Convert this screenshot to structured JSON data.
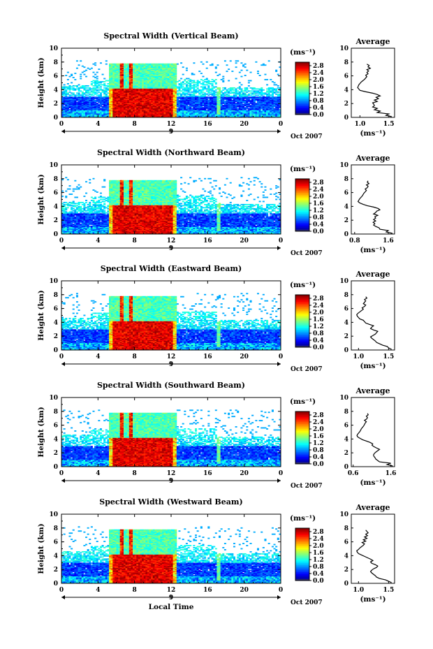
{
  "chart_data": [
    {
      "type": "heatmap",
      "title": "Spectral Width (Vertical Beam)",
      "ylabel": "Height (km)",
      "xlim": [
        0,
        24
      ],
      "ylim": [
        0,
        10
      ],
      "x_ticks": [
        "0",
        "4",
        "8",
        "12",
        "16",
        "20",
        "0"
      ],
      "y_ticks": [
        "0",
        "2",
        "4",
        "6",
        "8",
        "10"
      ],
      "date_label": "9",
      "date_suffix": "Oct 2007",
      "colorbar": {
        "unit": "(ms⁻¹)",
        "ticks": [
          "0.0",
          "0.4",
          "0.8",
          "1.2",
          "1.6",
          "2.0",
          "2.4",
          "2.8"
        ],
        "range": [
          0,
          3.0
        ]
      },
      "profile": {
        "title": "Average",
        "xlabel": "(ms⁻¹)",
        "x_ticks": [
          "1.0",
          "1.5"
        ],
        "xlim": [
          0.85,
          1.6
        ],
        "height": [
          0.1,
          0.3,
          0.5,
          0.7,
          0.9,
          1.1,
          1.3,
          1.5,
          1.7,
          1.9,
          2.1,
          2.3,
          2.5,
          2.7,
          2.9,
          3.1,
          3.3,
          3.5,
          3.7,
          3.9,
          4.1,
          4.3,
          4.5,
          4.7,
          4.9,
          5.1,
          5.3,
          5.5,
          5.7,
          5.9,
          6.1,
          6.3,
          6.5,
          6.7,
          6.9,
          7.1,
          7.3,
          7.5,
          7.7
        ],
        "width": [
          1.55,
          1.45,
          1.5,
          1.3,
          1.35,
          1.25,
          1.3,
          1.22,
          1.25,
          1.24,
          1.22,
          1.3,
          1.25,
          1.32,
          1.28,
          1.35,
          1.3,
          1.22,
          1.1,
          1.0,
          0.98,
          0.96,
          0.97,
          0.98,
          1.0,
          1.02,
          1.05,
          1.08,
          1.1,
          1.12,
          1.1,
          1.14,
          1.12,
          1.15,
          1.12,
          1.18,
          1.14,
          1.16,
          1.12
        ]
      }
    },
    {
      "type": "heatmap",
      "title": "Spectral Width (Northward Beam)",
      "ylabel": "Height (km)",
      "xlim": [
        0,
        24
      ],
      "ylim": [
        0,
        10
      ],
      "x_ticks": [
        "0",
        "4",
        "8",
        "12",
        "16",
        "20",
        "0"
      ],
      "y_ticks": [
        "0",
        "2",
        "4",
        "6",
        "8",
        "10"
      ],
      "date_label": "9",
      "date_suffix": "Oct 2007",
      "colorbar": {
        "unit": "(ms⁻¹)",
        "ticks": [
          "0.0",
          "0.4",
          "0.8",
          "1.2",
          "1.6",
          "2.0",
          "2.4",
          "2.8"
        ],
        "range": [
          0,
          3.0
        ]
      },
      "profile": {
        "title": "Average",
        "xlabel": "(ms⁻¹)",
        "x_ticks": [
          "0.8",
          "1.6"
        ],
        "xlim": [
          0.72,
          1.75
        ],
        "height": [
          0.1,
          0.3,
          0.5,
          0.7,
          0.9,
          1.1,
          1.3,
          1.5,
          1.7,
          1.9,
          2.1,
          2.3,
          2.5,
          2.7,
          2.9,
          3.1,
          3.3,
          3.5,
          3.7,
          3.9,
          4.1,
          4.3,
          4.5,
          4.7,
          4.9,
          5.1,
          5.3,
          5.5,
          5.7,
          5.9,
          6.1,
          6.3,
          6.5,
          6.7,
          6.9,
          7.1,
          7.3,
          7.5,
          7.7
        ],
        "width": [
          1.7,
          1.55,
          1.6,
          1.4,
          1.38,
          1.3,
          1.25,
          1.28,
          1.24,
          1.3,
          1.25,
          1.3,
          1.28,
          1.35,
          1.25,
          1.3,
          1.32,
          1.4,
          1.36,
          1.25,
          1.1,
          1.0,
          0.92,
          0.88,
          0.9,
          0.92,
          0.95,
          0.98,
          1.0,
          1.02,
          1.05,
          1.08,
          1.05,
          1.1,
          1.12,
          1.08,
          1.14,
          1.1,
          1.12
        ]
      }
    },
    {
      "type": "heatmap",
      "title": "Spectral Width (Eastward Beam)",
      "ylabel": "Height (km)",
      "xlim": [
        0,
        24
      ],
      "ylim": [
        0,
        10
      ],
      "x_ticks": [
        "0",
        "4",
        "8",
        "12",
        "16",
        "20",
        "0"
      ],
      "y_ticks": [
        "0",
        "2",
        "4",
        "6",
        "8",
        "10"
      ],
      "date_label": "9",
      "date_suffix": "Oct 2007",
      "colorbar": {
        "unit": "(ms⁻¹)",
        "ticks": [
          "0.0",
          "0.4",
          "0.8",
          "1.2",
          "1.6",
          "2.0",
          "2.4",
          "2.8"
        ],
        "range": [
          0,
          3.0
        ]
      },
      "profile": {
        "title": "Average",
        "xlabel": "(ms⁻¹)",
        "x_ticks": [
          "1.0",
          "1.5"
        ],
        "xlim": [
          0.88,
          1.6
        ],
        "height": [
          0.1,
          0.3,
          0.5,
          0.7,
          0.9,
          1.1,
          1.3,
          1.5,
          1.7,
          1.9,
          2.1,
          2.3,
          2.5,
          2.7,
          2.9,
          3.1,
          3.3,
          3.5,
          3.7,
          3.9,
          4.1,
          4.3,
          4.5,
          4.7,
          4.9,
          5.1,
          5.3,
          5.5,
          5.7,
          5.9,
          6.1,
          6.3,
          6.5,
          6.7,
          6.9,
          7.1,
          7.3,
          7.5,
          7.7
        ],
        "width": [
          1.55,
          1.5,
          1.48,
          1.4,
          1.35,
          1.3,
          1.28,
          1.25,
          1.22,
          1.2,
          1.24,
          1.28,
          1.3,
          1.32,
          1.25,
          1.2,
          1.22,
          1.25,
          1.18,
          1.12,
          1.1,
          1.08,
          1.02,
          1.0,
          0.98,
          0.97,
          0.99,
          1.02,
          1.05,
          1.08,
          1.06,
          1.1,
          1.12,
          1.08,
          1.1,
          1.12,
          1.1,
          1.14,
          1.12
        ]
      }
    },
    {
      "type": "heatmap",
      "title": "Spectral Width (Southward Beam)",
      "ylabel": "Height (km)",
      "xlim": [
        0,
        24
      ],
      "ylim": [
        0,
        10
      ],
      "x_ticks": [
        "0",
        "4",
        "8",
        "12",
        "16",
        "20",
        "0"
      ],
      "y_ticks": [
        "0",
        "2",
        "4",
        "6",
        "8",
        "10"
      ],
      "date_label": "9",
      "date_suffix": "Oct 2007",
      "colorbar": {
        "unit": "(ms⁻¹)",
        "ticks": [
          "0.0",
          "0.4",
          "0.8",
          "1.2",
          "1.6",
          "2.0",
          "2.4",
          "2.8"
        ],
        "range": [
          0,
          3.0
        ]
      },
      "profile": {
        "title": "Average",
        "xlabel": "(ms⁻¹)",
        "x_ticks": [
          "0.6",
          "1.6"
        ],
        "xlim": [
          0.55,
          1.7
        ],
        "height": [
          0.1,
          0.3,
          0.5,
          0.7,
          0.9,
          1.1,
          1.3,
          1.5,
          1.7,
          1.9,
          2.1,
          2.3,
          2.5,
          2.7,
          2.9,
          3.1,
          3.3,
          3.5,
          3.7,
          3.9,
          4.1,
          4.3,
          4.5,
          4.7,
          4.9,
          5.1,
          5.3,
          5.5,
          5.7,
          5.9,
          6.1,
          6.3,
          6.5,
          6.7,
          6.9,
          7.1,
          7.3,
          7.5,
          7.7
        ],
        "width": [
          1.65,
          1.5,
          1.6,
          1.3,
          1.25,
          1.2,
          1.18,
          1.15,
          1.14,
          1.16,
          1.2,
          1.25,
          1.3,
          1.22,
          1.15,
          1.1,
          1.12,
          1.05,
          0.95,
          0.85,
          0.78,
          0.72,
          0.7,
          0.72,
          0.75,
          0.78,
          0.8,
          0.82,
          0.85,
          0.88,
          0.9,
          0.92,
          0.95,
          0.9,
          0.96,
          0.98,
          0.95,
          1.0,
          0.98
        ]
      }
    },
    {
      "type": "heatmap",
      "title": "Spectral Width (Westward Beam)",
      "ylabel": "Height (km)",
      "xlabel": "Local Time",
      "xlim": [
        0,
        24
      ],
      "ylim": [
        0,
        10
      ],
      "x_ticks": [
        "0",
        "4",
        "8",
        "12",
        "16",
        "20",
        "0"
      ],
      "y_ticks": [
        "0",
        "2",
        "4",
        "6",
        "8",
        "10"
      ],
      "date_label": "9",
      "date_suffix": "Oct 2007",
      "colorbar": {
        "unit": "(ms⁻¹)",
        "ticks": [
          "0.0",
          "0.4",
          "0.8",
          "1.2",
          "1.6",
          "2.0",
          "2.4",
          "2.8"
        ],
        "range": [
          0,
          3.0
        ]
      },
      "profile": {
        "title": "Average",
        "xlabel": "(ms⁻¹)",
        "x_ticks": [
          "1.0",
          "1.5"
        ],
        "xlim": [
          0.88,
          1.6
        ],
        "height": [
          0.1,
          0.3,
          0.5,
          0.7,
          0.9,
          1.1,
          1.3,
          1.5,
          1.7,
          1.9,
          2.1,
          2.3,
          2.5,
          2.7,
          2.9,
          3.1,
          3.3,
          3.5,
          3.7,
          3.9,
          4.1,
          4.3,
          4.5,
          4.7,
          4.9,
          5.1,
          5.3,
          5.5,
          5.7,
          5.9,
          6.1,
          6.3,
          6.5,
          6.7,
          6.9,
          7.1,
          7.3,
          7.5,
          7.7
        ],
        "width": [
          1.55,
          1.5,
          1.45,
          1.35,
          1.3,
          1.28,
          1.25,
          1.22,
          1.2,
          1.22,
          1.25,
          1.3,
          1.32,
          1.28,
          1.22,
          1.2,
          1.24,
          1.2,
          1.15,
          1.1,
          1.05,
          1.0,
          0.98,
          0.97,
          1.0,
          1.02,
          1.05,
          1.08,
          1.1,
          1.06,
          1.12,
          1.08,
          1.14,
          1.1,
          1.15,
          1.12,
          1.16,
          1.14,
          1.12
        ]
      }
    }
  ]
}
